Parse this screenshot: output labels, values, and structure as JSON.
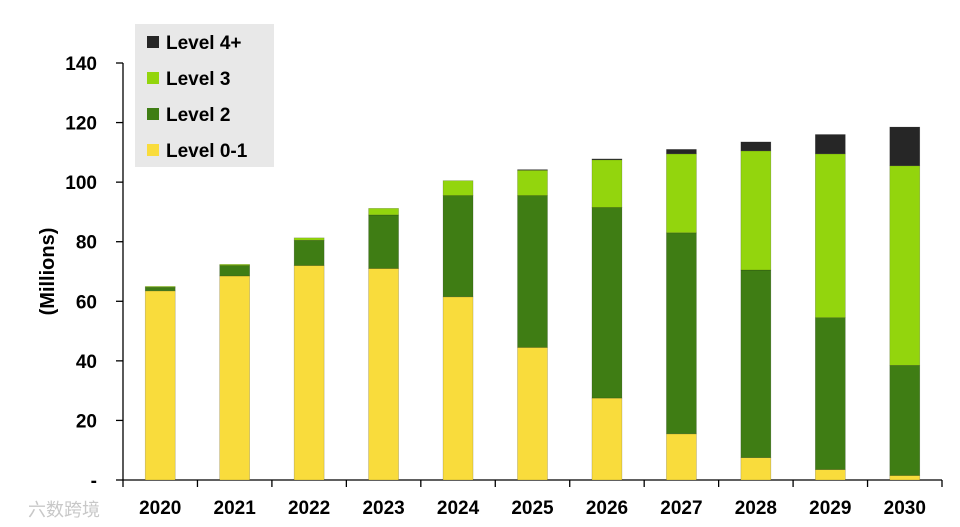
{
  "chart_data": {
    "type": "bar",
    "stacked": true,
    "ylabel": "(Millions)",
    "xlabel": "",
    "ylim": [
      0,
      140
    ],
    "yticks": [
      0,
      20,
      40,
      60,
      80,
      100,
      120,
      140
    ],
    "ytick_labels": [
      "-",
      "20",
      "40",
      "60",
      "80",
      "100",
      "120",
      "140"
    ],
    "categories": [
      "2020",
      "2021",
      "2022",
      "2023",
      "2024",
      "2025",
      "2026",
      "2027",
      "2028",
      "2029",
      "2030"
    ],
    "series": [
      {
        "name": "Level 0-1",
        "color": "#f9dc3c",
        "values": [
          63.5,
          68.5,
          72,
          71,
          61.5,
          44.5,
          27.5,
          15.5,
          7.5,
          3.5,
          1.5
        ]
      },
      {
        "name": "Level 2",
        "color": "#3f7d14",
        "values": [
          1.2,
          3.5,
          8.5,
          18,
          34,
          51,
          64,
          67.5,
          63,
          51,
          37
        ]
      },
      {
        "name": "Level 3",
        "color": "#93d50d",
        "values": [
          0.3,
          0.4,
          0.8,
          2.2,
          5,
          8.5,
          16,
          26.5,
          40,
          55,
          67
        ]
      },
      {
        "name": "Level 4+",
        "color": "#262626",
        "values": [
          0,
          0,
          0,
          0,
          0,
          0.2,
          0.3,
          1.5,
          3,
          6.5,
          13
        ]
      }
    ],
    "legend": {
      "position": "top-left",
      "entries": [
        "Level 4+",
        "Level 3",
        "Level 2",
        "Level 0-1"
      ]
    },
    "grid": false
  },
  "watermark": {
    "text": "六数跨境"
  }
}
